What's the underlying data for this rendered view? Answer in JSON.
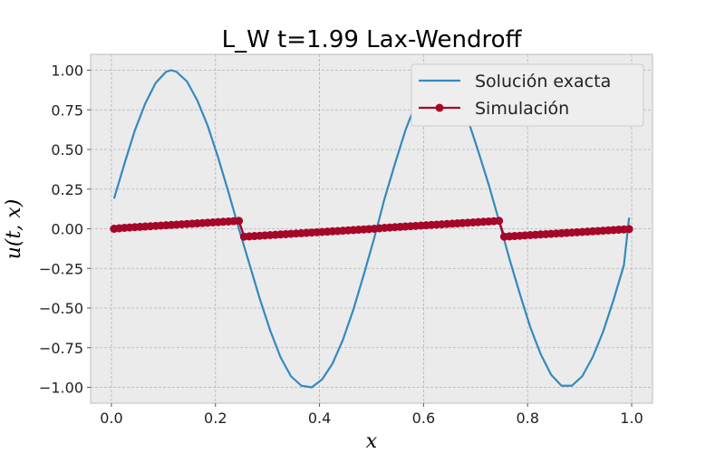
{
  "chart_data": {
    "type": "line",
    "title": "L_W t=1.99 Lax-Wendroff",
    "xlabel": "x",
    "ylabel": "u(t, x)",
    "xlim": [
      -0.04,
      1.04
    ],
    "ylim": [
      -1.1,
      1.1
    ],
    "x_ticks": [
      0.0,
      0.2,
      0.4,
      0.6,
      0.8,
      1.0
    ],
    "x_tick_labels": [
      "0.0",
      "0.2",
      "0.4",
      "0.6",
      "0.8",
      "1.0"
    ],
    "y_ticks": [
      1.0,
      0.75,
      0.5,
      0.25,
      0.0,
      -0.25,
      -0.5,
      -0.75,
      -1.0
    ],
    "y_tick_labels": [
      "1.00",
      "0.75",
      "0.50",
      "0.25",
      "0.00",
      "−0.25",
      "−0.50",
      "−0.75",
      "−1.00"
    ],
    "grid": true,
    "legend_position": "top-right",
    "series": [
      {
        "name": "Solución exacta",
        "color": "#348abd",
        "style": "line",
        "x": [
          0.005,
          0.025,
          0.045,
          0.065,
          0.085,
          0.105,
          0.115,
          0.125,
          0.145,
          0.165,
          0.185,
          0.205,
          0.225,
          0.245,
          0.265,
          0.285,
          0.305,
          0.325,
          0.345,
          0.365,
          0.385,
          0.405,
          0.425,
          0.445,
          0.465,
          0.485,
          0.505,
          0.525,
          0.545,
          0.565,
          0.585,
          0.605,
          0.615,
          0.625,
          0.645,
          0.665,
          0.685,
          0.705,
          0.725,
          0.745,
          0.765,
          0.785,
          0.805,
          0.825,
          0.845,
          0.865,
          0.885,
          0.905,
          0.925,
          0.945,
          0.965,
          0.985,
          0.995
        ],
        "y": [
          0.19,
          0.41,
          0.62,
          0.79,
          0.92,
          0.99,
          1.0,
          0.99,
          0.93,
          0.81,
          0.65,
          0.45,
          0.23,
          0.0,
          -0.22,
          -0.44,
          -0.64,
          -0.81,
          -0.93,
          -0.99,
          -1.0,
          -0.95,
          -0.85,
          -0.7,
          -0.51,
          -0.29,
          -0.06,
          0.19,
          0.41,
          0.62,
          0.79,
          0.92,
          0.99,
          1.0,
          0.95,
          0.84,
          0.69,
          0.49,
          0.28,
          0.05,
          -0.19,
          -0.41,
          -0.62,
          -0.79,
          -0.92,
          -0.99,
          -0.99,
          -0.93,
          -0.81,
          -0.65,
          -0.45,
          -0.23,
          0.07
        ]
      },
      {
        "name": "Simulación",
        "color": "#a60628",
        "style": "line-markers",
        "x": [
          0.005,
          0.015,
          0.025,
          0.035,
          0.045,
          0.055,
          0.065,
          0.075,
          0.085,
          0.095,
          0.105,
          0.115,
          0.125,
          0.135,
          0.145,
          0.155,
          0.165,
          0.175,
          0.185,
          0.195,
          0.205,
          0.215,
          0.225,
          0.235,
          0.245,
          0.255,
          0.265,
          0.275,
          0.285,
          0.295,
          0.305,
          0.315,
          0.325,
          0.335,
          0.345,
          0.355,
          0.365,
          0.375,
          0.385,
          0.395,
          0.405,
          0.415,
          0.425,
          0.435,
          0.445,
          0.455,
          0.465,
          0.475,
          0.485,
          0.495,
          0.505,
          0.515,
          0.525,
          0.535,
          0.545,
          0.555,
          0.565,
          0.575,
          0.585,
          0.595,
          0.605,
          0.615,
          0.625,
          0.635,
          0.645,
          0.655,
          0.665,
          0.675,
          0.685,
          0.695,
          0.705,
          0.715,
          0.725,
          0.735,
          0.745,
          0.755,
          0.765,
          0.775,
          0.785,
          0.795,
          0.805,
          0.815,
          0.825,
          0.835,
          0.845,
          0.855,
          0.865,
          0.875,
          0.885,
          0.895,
          0.905,
          0.915,
          0.925,
          0.935,
          0.945,
          0.955,
          0.965,
          0.975,
          0.985,
          0.995
        ],
        "y": [
          0.0,
          0.003,
          0.006,
          0.008,
          0.01,
          0.012,
          0.014,
          0.016,
          0.018,
          0.02,
          0.022,
          0.024,
          0.026,
          0.028,
          0.03,
          0.032,
          0.034,
          0.036,
          0.038,
          0.04,
          0.042,
          0.044,
          0.046,
          0.048,
          0.05,
          -0.05,
          -0.048,
          -0.046,
          -0.044,
          -0.042,
          -0.04,
          -0.038,
          -0.036,
          -0.034,
          -0.032,
          -0.03,
          -0.028,
          -0.026,
          -0.024,
          -0.022,
          -0.02,
          -0.018,
          -0.016,
          -0.014,
          -0.012,
          -0.01,
          -0.008,
          -0.006,
          -0.004,
          -0.002,
          0.0,
          0.003,
          0.006,
          0.008,
          0.01,
          0.012,
          0.014,
          0.016,
          0.018,
          0.02,
          0.022,
          0.024,
          0.026,
          0.028,
          0.03,
          0.032,
          0.034,
          0.036,
          0.038,
          0.04,
          0.042,
          0.044,
          0.046,
          0.048,
          0.05,
          -0.05,
          -0.048,
          -0.046,
          -0.044,
          -0.042,
          -0.04,
          -0.038,
          -0.036,
          -0.034,
          -0.032,
          -0.03,
          -0.028,
          -0.026,
          -0.024,
          -0.022,
          -0.02,
          -0.018,
          -0.016,
          -0.014,
          -0.012,
          -0.01,
          -0.008,
          -0.006,
          -0.004,
          -0.002
        ]
      }
    ]
  }
}
